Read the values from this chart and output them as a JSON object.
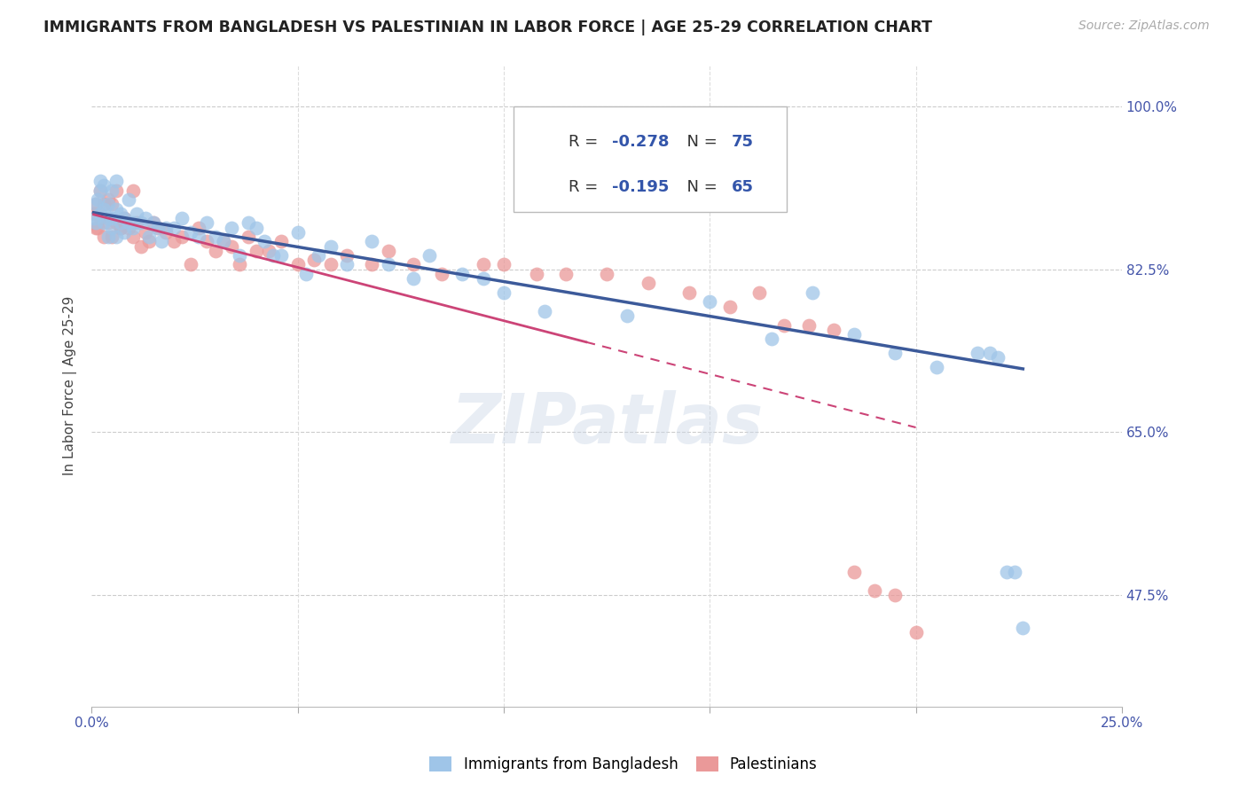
{
  "title": "IMMIGRANTS FROM BANGLADESH VS PALESTINIAN IN LABOR FORCE | AGE 25-29 CORRELATION CHART",
  "source": "Source: ZipAtlas.com",
  "ylabel": "In Labor Force | Age 25-29",
  "yticks": [
    "100.0%",
    "82.5%",
    "65.0%",
    "47.5%"
  ],
  "ytick_vals": [
    1.0,
    0.825,
    0.65,
    0.475
  ],
  "xlim": [
    0.0,
    0.25
  ],
  "ylim": [
    0.355,
    1.045
  ],
  "bangladesh_R": "-0.278",
  "bangladesh_N": "75",
  "palestinian_R": "-0.195",
  "palestinian_N": "65",
  "blue_color": "#9fc5e8",
  "pink_color": "#ea9999",
  "blue_line_color": "#3c5a9a",
  "pink_line_color": "#cc4477",
  "watermark": "ZIPatlas",
  "bangladesh_x": [
    0.0005,
    0.001,
    0.001,
    0.0015,
    0.002,
    0.002,
    0.002,
    0.003,
    0.003,
    0.003,
    0.004,
    0.004,
    0.004,
    0.005,
    0.005,
    0.005,
    0.006,
    0.006,
    0.006,
    0.007,
    0.007,
    0.008,
    0.008,
    0.009,
    0.009,
    0.01,
    0.01,
    0.011,
    0.012,
    0.013,
    0.014,
    0.015,
    0.016,
    0.017,
    0.018,
    0.02,
    0.022,
    0.024,
    0.026,
    0.028,
    0.03,
    0.032,
    0.034,
    0.036,
    0.038,
    0.04,
    0.042,
    0.044,
    0.046,
    0.05,
    0.052,
    0.055,
    0.058,
    0.062,
    0.068,
    0.072,
    0.078,
    0.082,
    0.09,
    0.095,
    0.1,
    0.11,
    0.13,
    0.15,
    0.165,
    0.175,
    0.185,
    0.195,
    0.205,
    0.215,
    0.218,
    0.22,
    0.222,
    0.224,
    0.226
  ],
  "bangladesh_y": [
    0.88,
    0.875,
    0.895,
    0.9,
    0.885,
    0.91,
    0.92,
    0.875,
    0.89,
    0.915,
    0.88,
    0.895,
    0.86,
    0.88,
    0.91,
    0.87,
    0.89,
    0.86,
    0.92,
    0.875,
    0.885,
    0.88,
    0.865,
    0.875,
    0.9,
    0.875,
    0.87,
    0.885,
    0.875,
    0.88,
    0.86,
    0.875,
    0.87,
    0.855,
    0.87,
    0.87,
    0.88,
    0.865,
    0.86,
    0.875,
    0.86,
    0.855,
    0.87,
    0.84,
    0.875,
    0.87,
    0.855,
    0.84,
    0.84,
    0.865,
    0.82,
    0.84,
    0.85,
    0.83,
    0.855,
    0.83,
    0.815,
    0.84,
    0.82,
    0.815,
    0.8,
    0.78,
    0.775,
    0.79,
    0.75,
    0.8,
    0.755,
    0.735,
    0.72,
    0.735,
    0.735,
    0.73,
    0.5,
    0.5,
    0.44
  ],
  "palestinian_x": [
    0.0005,
    0.001,
    0.001,
    0.0015,
    0.002,
    0.002,
    0.003,
    0.003,
    0.004,
    0.004,
    0.005,
    0.005,
    0.006,
    0.006,
    0.007,
    0.007,
    0.008,
    0.008,
    0.009,
    0.01,
    0.01,
    0.011,
    0.012,
    0.013,
    0.014,
    0.015,
    0.016,
    0.018,
    0.02,
    0.022,
    0.024,
    0.026,
    0.028,
    0.03,
    0.032,
    0.034,
    0.036,
    0.038,
    0.04,
    0.043,
    0.046,
    0.05,
    0.054,
    0.058,
    0.062,
    0.068,
    0.072,
    0.078,
    0.085,
    0.095,
    0.1,
    0.108,
    0.115,
    0.125,
    0.135,
    0.145,
    0.155,
    0.162,
    0.168,
    0.174,
    0.18,
    0.185,
    0.19,
    0.195,
    0.2
  ],
  "palestinian_y": [
    0.885,
    0.87,
    0.895,
    0.87,
    0.88,
    0.91,
    0.86,
    0.895,
    0.875,
    0.9,
    0.86,
    0.895,
    0.875,
    0.91,
    0.87,
    0.87,
    0.875,
    0.88,
    0.87,
    0.86,
    0.91,
    0.875,
    0.85,
    0.865,
    0.855,
    0.875,
    0.87,
    0.865,
    0.855,
    0.86,
    0.83,
    0.87,
    0.855,
    0.845,
    0.855,
    0.85,
    0.83,
    0.86,
    0.845,
    0.845,
    0.855,
    0.83,
    0.835,
    0.83,
    0.84,
    0.83,
    0.845,
    0.83,
    0.82,
    0.83,
    0.83,
    0.82,
    0.82,
    0.82,
    0.81,
    0.8,
    0.785,
    0.8,
    0.765,
    0.765,
    0.76,
    0.5,
    0.48,
    0.475,
    0.435
  ],
  "blue_line_x0": 0.0005,
  "blue_line_x1": 0.226,
  "blue_line_y0": 0.886,
  "blue_line_y1": 0.718,
  "pink_line_x0": 0.0005,
  "pink_line_x1": 0.2,
  "pink_line_y0": 0.884,
  "pink_line_y1": 0.655
}
